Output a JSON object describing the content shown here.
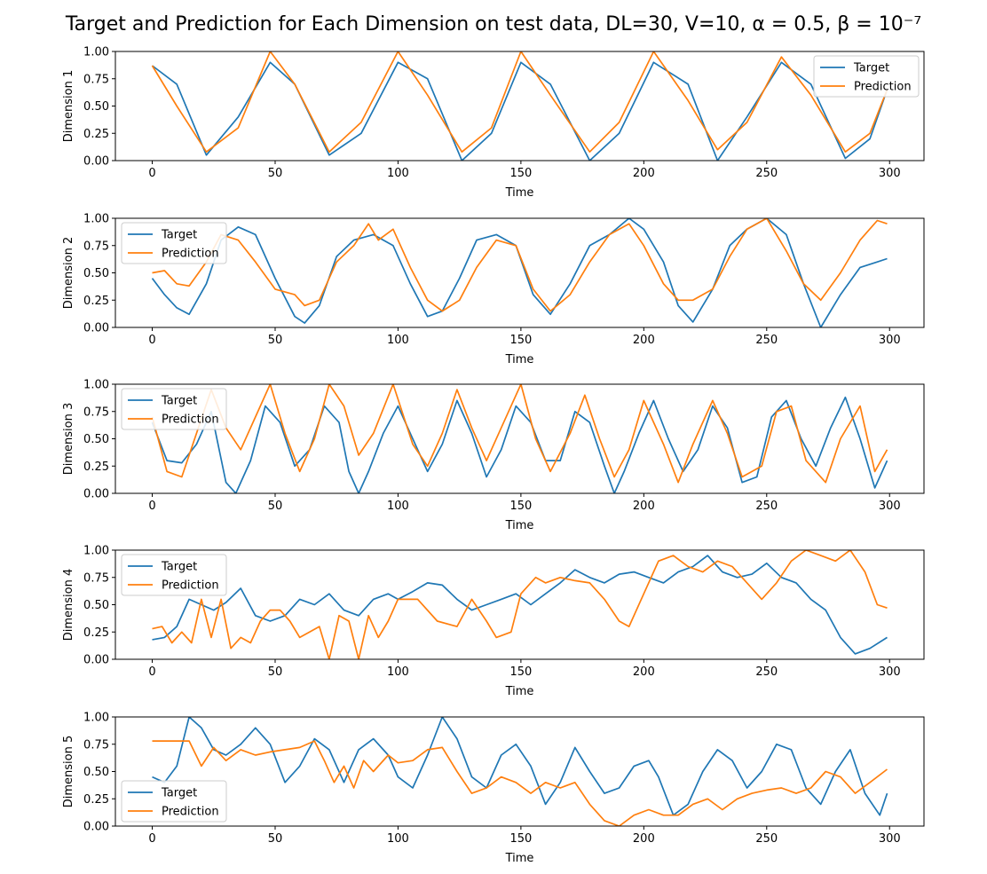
{
  "figure": {
    "title": "Target and Prediction for Each Dimension on test data, DL=30, V=10, α = 0.5, β = 10⁻⁷"
  },
  "colors": {
    "target": "#1f77b4",
    "prediction": "#ff7f0e"
  },
  "chart_data": [
    {
      "type": "line",
      "xlabel": "Time",
      "ylabel": "Dimension 1",
      "xlim": [
        -15,
        314
      ],
      "ylim": [
        0,
        1
      ],
      "xticks": [
        "0",
        "50",
        "100",
        "150",
        "200",
        "250",
        "300"
      ],
      "yticks": [
        "0.00",
        "0.25",
        "0.50",
        "0.75",
        "1.00"
      ],
      "legend": "top-right",
      "series": [
        {
          "name": "Target",
          "x": [
            0,
            10,
            22,
            35,
            48,
            58,
            72,
            85,
            100,
            112,
            126,
            138,
            150,
            162,
            178,
            190,
            204,
            218,
            230,
            242,
            256,
            268,
            282,
            292,
            299
          ],
          "y": [
            0.87,
            0.7,
            0.05,
            0.4,
            0.9,
            0.7,
            0.05,
            0.25,
            0.9,
            0.75,
            0.0,
            0.25,
            0.9,
            0.7,
            0.0,
            0.25,
            0.9,
            0.7,
            0.0,
            0.4,
            0.9,
            0.7,
            0.02,
            0.2,
            0.65
          ]
        },
        {
          "name": "Prediction",
          "x": [
            0,
            10,
            22,
            35,
            48,
            58,
            72,
            85,
            100,
            112,
            126,
            138,
            150,
            162,
            178,
            190,
            204,
            218,
            230,
            242,
            256,
            268,
            282,
            292,
            299
          ],
          "y": [
            0.87,
            0.5,
            0.08,
            0.3,
            1.0,
            0.7,
            0.08,
            0.35,
            1.0,
            0.6,
            0.08,
            0.3,
            1.0,
            0.6,
            0.08,
            0.35,
            1.0,
            0.55,
            0.1,
            0.35,
            0.95,
            0.6,
            0.08,
            0.25,
            0.65
          ]
        }
      ]
    },
    {
      "type": "line",
      "xlabel": "Time",
      "ylabel": "Dimension 2",
      "xlim": [
        -15,
        314
      ],
      "ylim": [
        0,
        1
      ],
      "xticks": [
        "0",
        "50",
        "100",
        "150",
        "200",
        "250",
        "300"
      ],
      "yticks": [
        "0.00",
        "0.25",
        "0.50",
        "0.75",
        "1.00"
      ],
      "legend": "upper-left",
      "series": [
        {
          "name": "Target",
          "x": [
            0,
            5,
            10,
            15,
            22,
            28,
            35,
            42,
            50,
            58,
            62,
            68,
            75,
            82,
            90,
            98,
            105,
            112,
            118,
            125,
            132,
            140,
            148,
            155,
            162,
            170,
            178,
            186,
            194,
            200,
            208,
            214,
            220,
            228,
            235,
            242,
            250,
            258,
            265,
            272,
            280,
            288,
            295,
            299
          ],
          "y": [
            0.45,
            0.3,
            0.18,
            0.12,
            0.4,
            0.8,
            0.92,
            0.85,
            0.45,
            0.1,
            0.04,
            0.2,
            0.65,
            0.8,
            0.85,
            0.75,
            0.4,
            0.1,
            0.15,
            0.45,
            0.8,
            0.85,
            0.75,
            0.3,
            0.12,
            0.4,
            0.75,
            0.85,
            1.0,
            0.9,
            0.6,
            0.2,
            0.05,
            0.35,
            0.75,
            0.9,
            1.0,
            0.85,
            0.4,
            0.0,
            0.3,
            0.55,
            0.6,
            0.63
          ]
        },
        {
          "name": "Prediction",
          "x": [
            0,
            5,
            10,
            15,
            22,
            28,
            35,
            42,
            50,
            58,
            62,
            68,
            75,
            82,
            88,
            92,
            98,
            105,
            112,
            118,
            125,
            132,
            140,
            148,
            155,
            162,
            170,
            178,
            186,
            194,
            200,
            208,
            214,
            220,
            228,
            235,
            242,
            250,
            258,
            265,
            272,
            280,
            288,
            295,
            299
          ],
          "y": [
            0.5,
            0.52,
            0.4,
            0.38,
            0.6,
            0.85,
            0.8,
            0.6,
            0.35,
            0.3,
            0.2,
            0.25,
            0.6,
            0.75,
            0.95,
            0.8,
            0.9,
            0.55,
            0.25,
            0.15,
            0.25,
            0.55,
            0.8,
            0.75,
            0.35,
            0.15,
            0.3,
            0.6,
            0.85,
            0.95,
            0.75,
            0.4,
            0.25,
            0.25,
            0.35,
            0.65,
            0.9,
            1.0,
            0.7,
            0.4,
            0.25,
            0.5,
            0.8,
            0.98,
            0.95
          ]
        }
      ]
    },
    {
      "type": "line",
      "xlabel": "Time",
      "ylabel": "Dimension 3",
      "xlim": [
        -15,
        314
      ],
      "ylim": [
        0,
        1
      ],
      "xticks": [
        "0",
        "50",
        "100",
        "150",
        "200",
        "250",
        "300"
      ],
      "yticks": [
        "0.00",
        "0.25",
        "0.50",
        "0.75",
        "1.00"
      ],
      "legend": "upper-left",
      "series": [
        {
          "name": "Target",
          "x": [
            0,
            6,
            12,
            18,
            24,
            30,
            34,
            40,
            46,
            52,
            58,
            64,
            70,
            76,
            80,
            84,
            88,
            94,
            100,
            106,
            112,
            118,
            124,
            130,
            136,
            142,
            148,
            154,
            160,
            166,
            172,
            178,
            184,
            188,
            192,
            198,
            204,
            210,
            216,
            222,
            228,
            234,
            240,
            246,
            252,
            258,
            264,
            270,
            276,
            282,
            288,
            294,
            299
          ],
          "y": [
            0.65,
            0.3,
            0.28,
            0.45,
            0.75,
            0.1,
            0.0,
            0.3,
            0.8,
            0.65,
            0.25,
            0.4,
            0.8,
            0.65,
            0.2,
            0.0,
            0.2,
            0.55,
            0.8,
            0.5,
            0.2,
            0.45,
            0.85,
            0.55,
            0.15,
            0.4,
            0.8,
            0.65,
            0.3,
            0.3,
            0.75,
            0.65,
            0.25,
            0.0,
            0.2,
            0.55,
            0.85,
            0.5,
            0.2,
            0.4,
            0.8,
            0.6,
            0.1,
            0.15,
            0.7,
            0.85,
            0.5,
            0.25,
            0.6,
            0.88,
            0.5,
            0.05,
            0.3
          ]
        },
        {
          "name": "Prediction",
          "x": [
            0,
            6,
            12,
            18,
            24,
            30,
            36,
            42,
            48,
            54,
            60,
            66,
            72,
            78,
            84,
            90,
            98,
            106,
            112,
            118,
            124,
            130,
            136,
            142,
            150,
            156,
            162,
            170,
            176,
            182,
            188,
            194,
            200,
            208,
            214,
            220,
            228,
            234,
            240,
            248,
            254,
            260,
            266,
            274,
            280,
            288,
            294,
            299
          ],
          "y": [
            0.7,
            0.2,
            0.15,
            0.55,
            0.95,
            0.6,
            0.4,
            0.7,
            1.0,
            0.55,
            0.2,
            0.5,
            1.0,
            0.8,
            0.35,
            0.55,
            1.0,
            0.45,
            0.25,
            0.55,
            0.95,
            0.6,
            0.3,
            0.6,
            1.0,
            0.5,
            0.2,
            0.55,
            0.9,
            0.5,
            0.15,
            0.4,
            0.85,
            0.45,
            0.1,
            0.45,
            0.85,
            0.55,
            0.15,
            0.25,
            0.75,
            0.8,
            0.3,
            0.1,
            0.5,
            0.8,
            0.2,
            0.4
          ]
        }
      ]
    },
    {
      "type": "line",
      "xlabel": "Time",
      "ylabel": "Dimension 4",
      "xlim": [
        -15,
        314
      ],
      "ylim": [
        0,
        1
      ],
      "xticks": [
        "0",
        "50",
        "100",
        "150",
        "200",
        "250",
        "300"
      ],
      "yticks": [
        "0.00",
        "0.25",
        "0.50",
        "0.75",
        "1.00"
      ],
      "legend": "upper-left",
      "series": [
        {
          "name": "Target",
          "x": [
            0,
            5,
            10,
            15,
            20,
            25,
            30,
            36,
            42,
            48,
            54,
            60,
            66,
            72,
            78,
            84,
            90,
            96,
            100,
            106,
            112,
            118,
            124,
            130,
            136,
            142,
            148,
            154,
            160,
            166,
            172,
            178,
            184,
            190,
            196,
            202,
            208,
            214,
            220,
            226,
            232,
            238,
            244,
            250,
            256,
            262,
            268,
            274,
            280,
            286,
            292,
            299
          ],
          "y": [
            0.18,
            0.2,
            0.3,
            0.55,
            0.5,
            0.45,
            0.52,
            0.65,
            0.4,
            0.35,
            0.4,
            0.55,
            0.5,
            0.6,
            0.45,
            0.4,
            0.55,
            0.6,
            0.55,
            0.62,
            0.7,
            0.68,
            0.55,
            0.45,
            0.5,
            0.55,
            0.6,
            0.5,
            0.6,
            0.7,
            0.82,
            0.75,
            0.7,
            0.78,
            0.8,
            0.75,
            0.7,
            0.8,
            0.85,
            0.95,
            0.8,
            0.75,
            0.78,
            0.88,
            0.75,
            0.7,
            0.55,
            0.45,
            0.2,
            0.05,
            0.1,
            0.2
          ]
        },
        {
          "name": "Prediction",
          "x": [
            0,
            4,
            8,
            12,
            16,
            20,
            24,
            28,
            32,
            36,
            40,
            44,
            48,
            52,
            56,
            60,
            64,
            68,
            72,
            76,
            80,
            84,
            88,
            92,
            96,
            100,
            108,
            116,
            124,
            130,
            136,
            140,
            146,
            150,
            156,
            160,
            166,
            172,
            178,
            184,
            190,
            194,
            200,
            206,
            212,
            218,
            224,
            230,
            236,
            242,
            248,
            254,
            260,
            266,
            272,
            278,
            284,
            290,
            295,
            299
          ],
          "y": [
            0.28,
            0.3,
            0.15,
            0.25,
            0.15,
            0.55,
            0.2,
            0.55,
            0.1,
            0.2,
            0.15,
            0.35,
            0.45,
            0.45,
            0.35,
            0.2,
            0.25,
            0.3,
            0.0,
            0.4,
            0.35,
            0.0,
            0.4,
            0.2,
            0.35,
            0.55,
            0.55,
            0.35,
            0.3,
            0.55,
            0.35,
            0.2,
            0.25,
            0.6,
            0.75,
            0.7,
            0.75,
            0.72,
            0.7,
            0.55,
            0.35,
            0.3,
            0.6,
            0.9,
            0.95,
            0.85,
            0.8,
            0.9,
            0.85,
            0.7,
            0.55,
            0.7,
            0.9,
            1.0,
            0.95,
            0.9,
            1.0,
            0.8,
            0.5,
            0.47
          ]
        }
      ]
    },
    {
      "type": "line",
      "xlabel": "Time",
      "ylabel": "Dimension 5",
      "xlim": [
        -15,
        314
      ],
      "ylim": [
        0,
        1
      ],
      "xticks": [
        "0",
        "50",
        "100",
        "150",
        "200",
        "250",
        "300"
      ],
      "yticks": [
        "0.00",
        "0.25",
        "0.50",
        "0.75",
        "1.00"
      ],
      "legend": "lower-left",
      "series": [
        {
          "name": "Target",
          "x": [
            0,
            5,
            10,
            15,
            20,
            25,
            30,
            36,
            42,
            48,
            54,
            60,
            66,
            72,
            78,
            84,
            90,
            96,
            100,
            106,
            112,
            118,
            124,
            130,
            136,
            142,
            148,
            154,
            160,
            166,
            172,
            178,
            184,
            190,
            196,
            202,
            206,
            212,
            218,
            224,
            230,
            236,
            242,
            248,
            254,
            260,
            266,
            272,
            278,
            284,
            290,
            296,
            299
          ],
          "y": [
            0.45,
            0.4,
            0.55,
            1.0,
            0.9,
            0.7,
            0.65,
            0.75,
            0.9,
            0.75,
            0.4,
            0.55,
            0.8,
            0.7,
            0.4,
            0.7,
            0.8,
            0.65,
            0.45,
            0.35,
            0.65,
            1.0,
            0.8,
            0.45,
            0.35,
            0.65,
            0.75,
            0.55,
            0.2,
            0.4,
            0.72,
            0.5,
            0.3,
            0.35,
            0.55,
            0.6,
            0.45,
            0.1,
            0.2,
            0.5,
            0.7,
            0.6,
            0.35,
            0.5,
            0.75,
            0.7,
            0.35,
            0.2,
            0.5,
            0.7,
            0.3,
            0.1,
            0.3
          ]
        },
        {
          "name": "Prediction",
          "x": [
            0,
            5,
            10,
            15,
            20,
            25,
            30,
            36,
            42,
            48,
            54,
            60,
            66,
            70,
            74,
            78,
            82,
            86,
            90,
            96,
            100,
            106,
            112,
            118,
            124,
            130,
            136,
            142,
            148,
            154,
            160,
            166,
            172,
            178,
            184,
            190,
            196,
            202,
            208,
            214,
            220,
            226,
            232,
            238,
            244,
            250,
            256,
            262,
            268,
            274,
            280,
            286,
            292,
            299
          ],
          "y": [
            0.78,
            0.78,
            0.78,
            0.78,
            0.55,
            0.72,
            0.6,
            0.7,
            0.65,
            0.68,
            0.7,
            0.72,
            0.78,
            0.6,
            0.4,
            0.55,
            0.35,
            0.6,
            0.5,
            0.65,
            0.58,
            0.6,
            0.7,
            0.72,
            0.5,
            0.3,
            0.35,
            0.45,
            0.4,
            0.3,
            0.4,
            0.35,
            0.4,
            0.2,
            0.05,
            0.0,
            0.1,
            0.15,
            0.1,
            0.1,
            0.2,
            0.25,
            0.15,
            0.25,
            0.3,
            0.33,
            0.35,
            0.3,
            0.35,
            0.5,
            0.45,
            0.3,
            0.4,
            0.52
          ]
        }
      ]
    }
  ]
}
